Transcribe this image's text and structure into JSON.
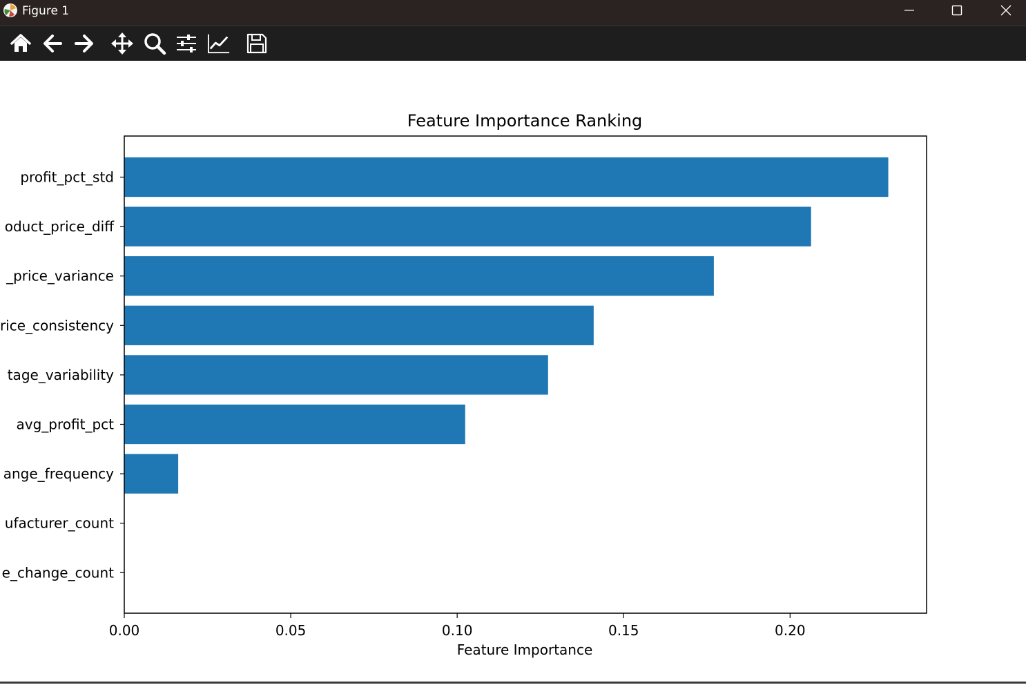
{
  "window": {
    "title": "Figure 1",
    "icons": [
      "app-icon",
      "minimize-icon",
      "maximize-icon",
      "close-icon"
    ]
  },
  "toolbar": {
    "tools": [
      "home-icon",
      "back-arrow-icon",
      "forward-arrow-icon",
      "pan-move-icon",
      "zoom-magnifier-icon",
      "configure-subplots-icon",
      "edit-axis-icon",
      "save-floppy-icon"
    ]
  },
  "chart_data": {
    "type": "bar",
    "orientation": "horizontal",
    "title": "Feature Importance Ranking",
    "xlabel": "Feature Importance",
    "ylabel": "",
    "categories": [
      "profit_pct_std",
      "oduct_price_diff",
      "_price_variance",
      "rice_consistency",
      "tage_variability",
      "avg_profit_pct",
      "ange_frequency",
      "ufacturer_count",
      "e_change_count"
    ],
    "values": [
      0.2295,
      0.2063,
      0.1771,
      0.141,
      0.1273,
      0.1024,
      0.0162,
      0.0,
      0.0
    ],
    "xlim": [
      0,
      0.241
    ],
    "xticks": [
      "0.00",
      "0.05",
      "0.10",
      "0.15",
      "0.20"
    ],
    "xtick_values": [
      0,
      0.05,
      0.1,
      0.15,
      0.2
    ],
    "bar_color": "#1f77b4",
    "grid": false
  }
}
